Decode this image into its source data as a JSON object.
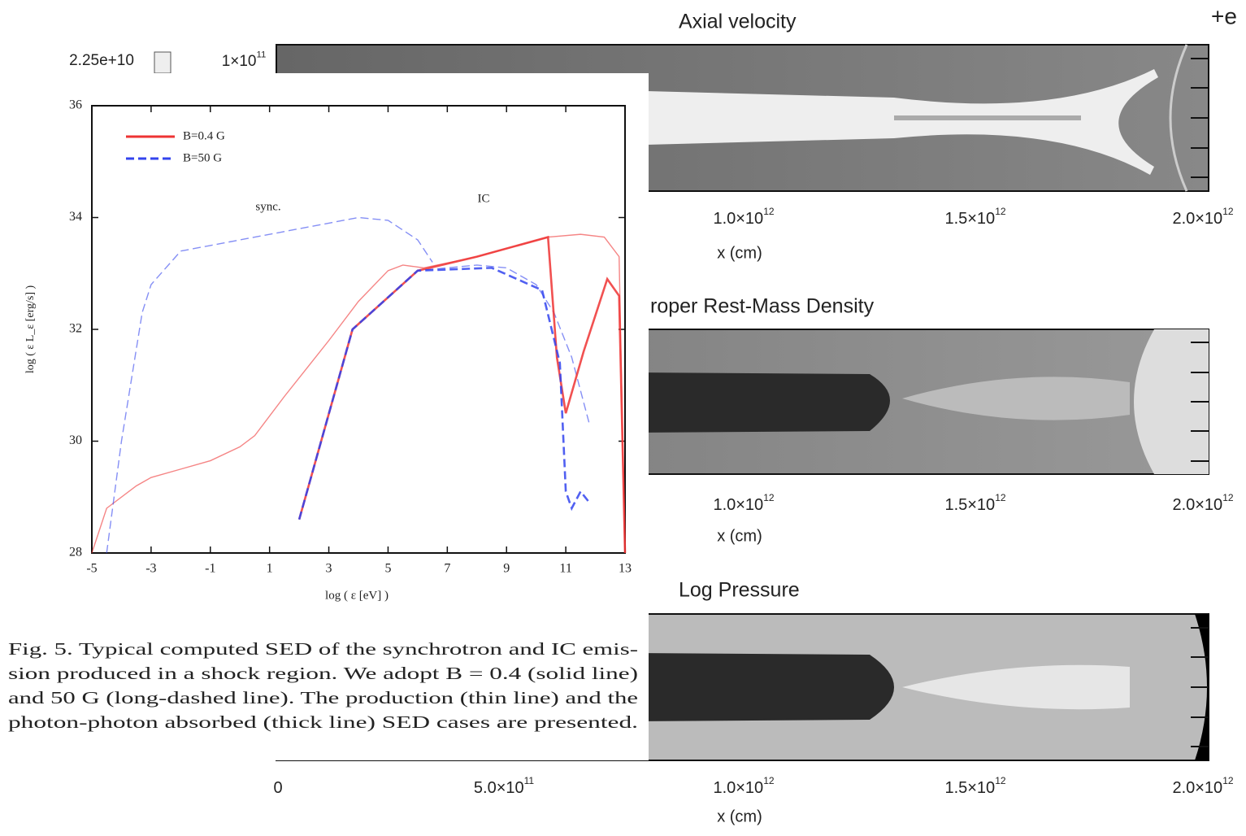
{
  "background": {
    "scale_value": "2.25e+10",
    "top_tick": {
      "base": "1×10",
      "exp": "11"
    },
    "corner_text": "+e",
    "panels": [
      {
        "title": "Axial velocity",
        "ticks": [
          {
            "base": "1.0×10",
            "exp": "12"
          },
          {
            "base": "1.5×10",
            "exp": "12"
          },
          {
            "base": "2.0×10",
            "exp": "12"
          }
        ],
        "axis_label": "x (cm)"
      },
      {
        "title": "roper Rest-Mass Density",
        "ticks": [
          {
            "base": "1.0×10",
            "exp": "12"
          },
          {
            "base": "1.5×10",
            "exp": "12"
          },
          {
            "base": "2.0×10",
            "exp": "12"
          }
        ],
        "axis_label": "x (cm)"
      },
      {
        "title": "Log Pressure",
        "ticks": [
          {
            "base": "0",
            "exp": ""
          },
          {
            "base": "5.0×10",
            "exp": "11"
          },
          {
            "base": "1.0×10",
            "exp": "12"
          },
          {
            "base": "1.5×10",
            "exp": "12"
          },
          {
            "base": "2.0×10",
            "exp": "12"
          }
        ],
        "axis_label": "x (cm)"
      }
    ]
  },
  "chart_data": {
    "type": "line",
    "xlabel": "log ( ε [eV] )",
    "ylabel": "log ( ε L_ε [erg/s] )",
    "xlim": [
      -5,
      13
    ],
    "xticks": [
      -5,
      -3,
      -1,
      1,
      3,
      5,
      7,
      9,
      11,
      13
    ],
    "ylim": [
      28,
      36
    ],
    "yticks": [
      28,
      30,
      32,
      34,
      36
    ],
    "annotations": [
      "sync.",
      "IC"
    ],
    "series": [
      {
        "name": "B=0.4 G",
        "color": "#ee3333",
        "dash": false,
        "thick": false,
        "x": [
          -5,
          -4.5,
          -3.5,
          -3,
          -2,
          -1,
          0,
          0.5,
          1.5,
          3,
          4,
          5,
          5.5,
          6.2,
          8,
          10.4,
          11.5,
          12.3,
          12.8,
          13
        ],
        "values": [
          28,
          28.8,
          29.2,
          29.35,
          29.5,
          29.65,
          29.9,
          30.1,
          30.8,
          31.8,
          32.5,
          33.05,
          33.15,
          33.1,
          33.3,
          33.65,
          33.7,
          33.65,
          33.3,
          28
        ]
      },
      {
        "name": "B=50 G",
        "color": "#3344ee",
        "dash": true,
        "thick": false,
        "x": [
          -4.5,
          -4,
          -3.3,
          -3,
          -2,
          0,
          2,
          4,
          5,
          6,
          6.5
        ],
        "values": [
          28,
          30,
          32.3,
          32.8,
          33.4,
          33.6,
          33.8,
          34,
          33.95,
          33.6,
          33.2
        ]
      },
      {
        "color": "#3344ee",
        "dash": true,
        "thick": false,
        "x": [
          2,
          3.8,
          6,
          8,
          9,
          10,
          10.6,
          11.2,
          11.8
        ],
        "values": [
          28.6,
          32,
          33.05,
          33.15,
          33.1,
          32.8,
          32.3,
          31.5,
          30.3
        ]
      },
      {
        "color": "#ee3333",
        "dash": false,
        "thick": true,
        "x": [
          2,
          3.8,
          6,
          8,
          10.4,
          10.7,
          11,
          11.6,
          12.4,
          12.8,
          13
        ],
        "values": [
          28.6,
          32,
          33.05,
          33.3,
          33.65,
          31.5,
          30.5,
          31.6,
          32.9,
          32.6,
          28
        ]
      },
      {
        "color": "#3344ee",
        "dash": true,
        "thick": true,
        "x": [
          2,
          3.8,
          6,
          8.5,
          10.2,
          10.8,
          11,
          11.2,
          11.5,
          11.8
        ],
        "values": [
          28.6,
          32,
          33.05,
          33.1,
          32.7,
          31.4,
          29.1,
          28.8,
          29.1,
          28.9
        ]
      }
    ]
  },
  "caption": [
    "Fig. 5. Typical computed SED of the synchrotron and IC emis-",
    "sion produced in a shock region. We adopt B = 0.4 (solid line)",
    "and 50 G (long-dashed line). The production (thin line) and the",
    "photon-photon absorbed (thick line) SED cases are presented."
  ]
}
